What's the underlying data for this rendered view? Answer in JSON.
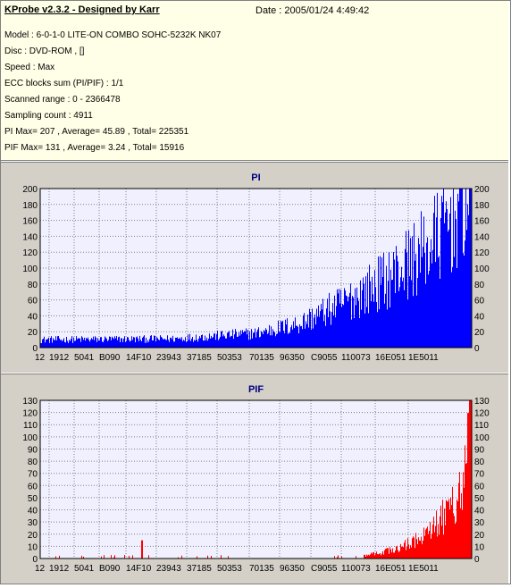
{
  "header": {
    "title": "KProbe v2.3.2 - Designed by Karr",
    "date": "Date : 2005/01/24 4:49:42",
    "lines": [
      "Model : 6-0-1-0 LITE-ON COMBO SOHC-5232K NK07",
      "Disc : DVD-ROM ,  []",
      "Speed : Max",
      "ECC blocks sum (PI/PIF) : 1/1",
      "Scanned range : 0 - 2366478",
      "Sampling count : 4911",
      "PI Max= 207 , Average= 45.89 , Total= 225351",
      "PIF Max= 131 , Average= 3.24 , Total= 15916"
    ]
  },
  "colors": {
    "info_bg": "#ffffe7",
    "panel_bg": "#d4d0c8",
    "plot_bg": "#f0f0ff",
    "pi_bar": "#0000ff",
    "pif_bar": "#ff0000",
    "grid": "#808080",
    "title": "#000080"
  },
  "chart_data": [
    {
      "type": "bar",
      "title": "PI",
      "ylim": [
        0,
        200
      ],
      "yticks": [
        0,
        20,
        40,
        60,
        80,
        100,
        120,
        140,
        160,
        180,
        200
      ],
      "xtick_labels": [
        "12",
        "1912",
        "5041",
        "B090",
        "14F10",
        "23943",
        "37185",
        "50353",
        "70135",
        "96350",
        "C9055",
        "110073",
        "16E051",
        "1E5011"
      ],
      "grid": true,
      "max": 207,
      "average": 45.89,
      "profile": [
        [
          0,
          10
        ],
        [
          0.3,
          11
        ],
        [
          0.5,
          18
        ],
        [
          0.6,
          30
        ],
        [
          0.7,
          55
        ],
        [
          0.8,
          85
        ],
        [
          0.9,
          125
        ],
        [
          1.0,
          195
        ]
      ]
    },
    {
      "type": "bar",
      "title": "PIF",
      "ylim": [
        0,
        130
      ],
      "yticks": [
        0,
        10,
        20,
        30,
        40,
        50,
        60,
        70,
        80,
        90,
        100,
        110,
        120,
        130
      ],
      "xtick_labels": [
        "12",
        "1912",
        "5041",
        "B090",
        "14F10",
        "23943",
        "37185",
        "50353",
        "70135",
        "96350",
        "C9055",
        "110073",
        "16E051",
        "1E5011"
      ],
      "grid": true,
      "max": 131,
      "average": 3.24,
      "profile": [
        [
          0,
          0.3
        ],
        [
          0.6,
          0.5
        ],
        [
          0.75,
          2
        ],
        [
          0.83,
          8
        ],
        [
          0.9,
          20
        ],
        [
          0.95,
          40
        ],
        [
          0.98,
          60
        ],
        [
          1.0,
          120
        ]
      ]
    }
  ]
}
